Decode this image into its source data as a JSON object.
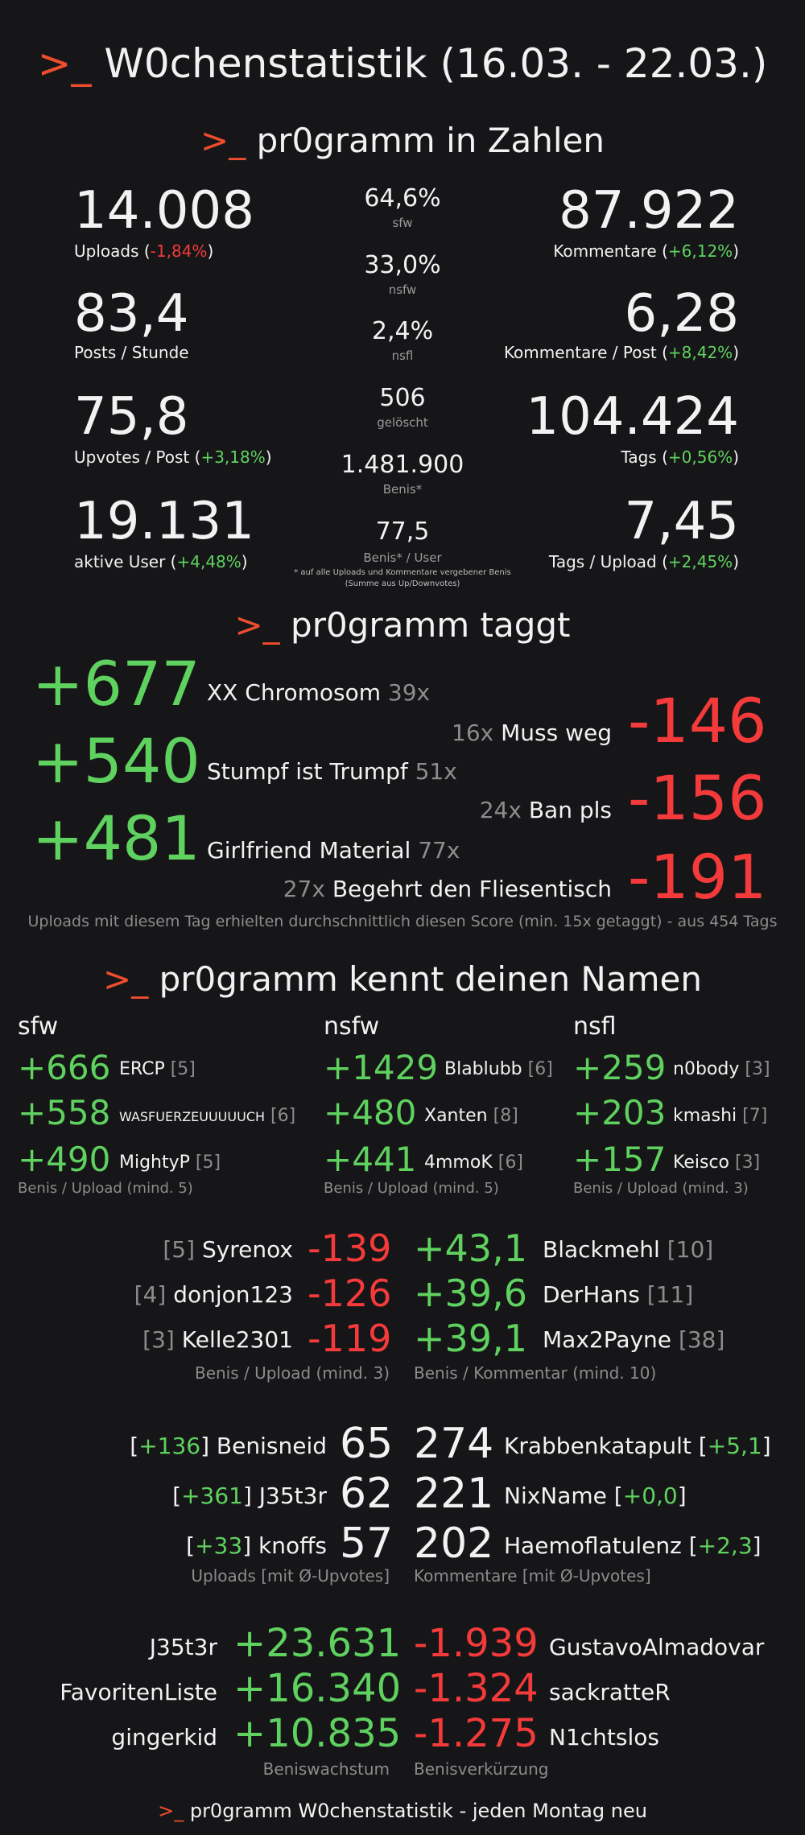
{
  "header": {
    "prompt": ">_",
    "title": "W0chenstatistik (16.03. - 22.03.)"
  },
  "zahlen": {
    "title": "pr0gramm in Zahlen",
    "left": [
      {
        "value": "14.008",
        "label": "Uploads (",
        "change": "-1,84%",
        "close": ")"
      },
      {
        "value": "83,4",
        "label": "Posts / Stunde",
        "change": "",
        "close": ""
      },
      {
        "value": "75,8",
        "label": "Upvotes / Post (",
        "change": "+3,18%",
        "close": ")"
      },
      {
        "value": "19.131",
        "label": "aktive User (",
        "change": "+4,48%",
        "close": ")"
      }
    ],
    "middle": [
      {
        "value": "64,6%",
        "label": "sfw"
      },
      {
        "value": "33,0%",
        "label": "nsfw"
      },
      {
        "value": "2,4%",
        "label": "nsfl"
      },
      {
        "value": "506",
        "label": "gelöscht"
      },
      {
        "value": "1.481.900",
        "label": "Benis*"
      },
      {
        "value": "77,5",
        "label": "Benis* / User"
      }
    ],
    "footnote1": "* auf alle Uploads und Kommentare vergebener Benis",
    "footnote2": "(Summe aus Up/Downvotes)",
    "right": [
      {
        "value": "87.922",
        "label": "Kommentare (",
        "change": "+6,12%",
        "close": ")"
      },
      {
        "value": "6,28",
        "label": "Kommentare / Post (",
        "change": "+8,42%",
        "close": ")"
      },
      {
        "value": "104.424",
        "label": "Tags (",
        "change": "+0,56%",
        "close": ")"
      },
      {
        "value": "7,45",
        "label": "Tags / Upload (",
        "change": "+2,45%",
        "close": ")"
      }
    ]
  },
  "taggt": {
    "title": "pr0gramm taggt",
    "positive": [
      {
        "score": "+677",
        "name": "XX Chromosom",
        "count": "39x"
      },
      {
        "score": "+540",
        "name": "Stumpf ist Trumpf",
        "count": "51x"
      },
      {
        "score": "+481",
        "name": "Girlfriend Material",
        "count": "77x"
      }
    ],
    "negative": [
      {
        "score": "-146",
        "name": "Muss weg",
        "count": "16x"
      },
      {
        "score": "-156",
        "name": "Ban pls",
        "count": "24x"
      },
      {
        "score": "-191",
        "name": "Begehrt den Fliesentisch",
        "count": "27x"
      }
    ],
    "note": "Uploads mit diesem Tag erhielten durchschnittlich diesen Score (min. 15x getaggt) - aus 454 Tags"
  },
  "namen": {
    "title": "pr0gramm kennt deinen Namen",
    "columns": [
      {
        "head": "sfw",
        "note": "Benis / Upload (mind. 5)",
        "rows": [
          {
            "score": "+666",
            "name": "ERCP",
            "count": "[5]"
          },
          {
            "score": "+558",
            "name": "WASFUERZEUUUUUCH",
            "count": "[6]"
          },
          {
            "score": "+490",
            "name": "MightyP",
            "count": "[5]"
          }
        ]
      },
      {
        "head": "nsfw",
        "note": "Benis / Upload (mind. 5)",
        "rows": [
          {
            "score": "+1429",
            "name": "Blablubb",
            "count": "[6]"
          },
          {
            "score": "+480",
            "name": "Xanten",
            "count": "[8]"
          },
          {
            "score": "+441",
            "name": "4mmoK",
            "count": "[6]"
          }
        ]
      },
      {
        "head": "nsfl",
        "note": "Benis / Upload (mind. 3)",
        "rows": [
          {
            "score": "+259",
            "name": "n0body",
            "count": "[3]"
          },
          {
            "score": "+203",
            "name": "kmashi",
            "count": "[7]"
          },
          {
            "score": "+157",
            "name": "Keisco",
            "count": "[3]"
          }
        ]
      }
    ],
    "worst": {
      "note": "Benis / Upload (mind. 3)",
      "rows": [
        {
          "count": "[5]",
          "name": "Syrenox",
          "score": "-139"
        },
        {
          "count": "[4]",
          "name": "donjon123",
          "score": "-126"
        },
        {
          "count": "[3]",
          "name": "Kelle2301",
          "score": "-119"
        }
      ]
    },
    "comments": {
      "note": "Benis / Kommentar (mind. 10)",
      "rows": [
        {
          "score": "+43,1",
          "name": "Blackmehl",
          "count": "[10]"
        },
        {
          "score": "+39,6",
          "name": "DerHans",
          "count": "[11]"
        },
        {
          "score": "+39,1",
          "name": "Max2Payne",
          "count": "[38]"
        }
      ]
    }
  },
  "uploads": {
    "note": "Uploads [mit Ø-Upvotes]",
    "rows": [
      {
        "avg": "+136",
        "name": "Benisneid",
        "value": "65"
      },
      {
        "avg": "+361",
        "name": "J35t3r",
        "value": "62"
      },
      {
        "avg": "+33",
        "name": "knoffs",
        "value": "57"
      }
    ]
  },
  "kommentare": {
    "note": "Kommentare [mit Ø-Upvotes]",
    "rows": [
      {
        "value": "274",
        "name": "Krabbenkatapult",
        "avg": "+5,1"
      },
      {
        "value": "221",
        "name": "NixName",
        "avg": "+0,0"
      },
      {
        "value": "202",
        "name": "Haemoflatulenz",
        "avg": "+2,3"
      }
    ]
  },
  "wachstum": {
    "note": "Beniswachstum",
    "rows": [
      {
        "name": "J35t3r",
        "value": "+23.631"
      },
      {
        "name": "FavoritenListe",
        "value": "+16.340"
      },
      {
        "name": "gingerkid",
        "value": "+10.835"
      }
    ]
  },
  "verkuerzung": {
    "note": "Benisverkürzung",
    "rows": [
      {
        "value": "-1.939",
        "name": "GustavoAlmadovar"
      },
      {
        "value": "-1.324",
        "name": "sackratteR"
      },
      {
        "value": "-1.275",
        "name": "N1chtslos"
      }
    ]
  },
  "footer": {
    "text": "pr0gramm W0chenstatistik - jeden Montag neu"
  },
  "colors": {
    "accent": "#ee4d2e",
    "positive": "#5fd15f",
    "negative": "#f43a3a",
    "muted": "#8c8c8c",
    "background": "#161618"
  }
}
